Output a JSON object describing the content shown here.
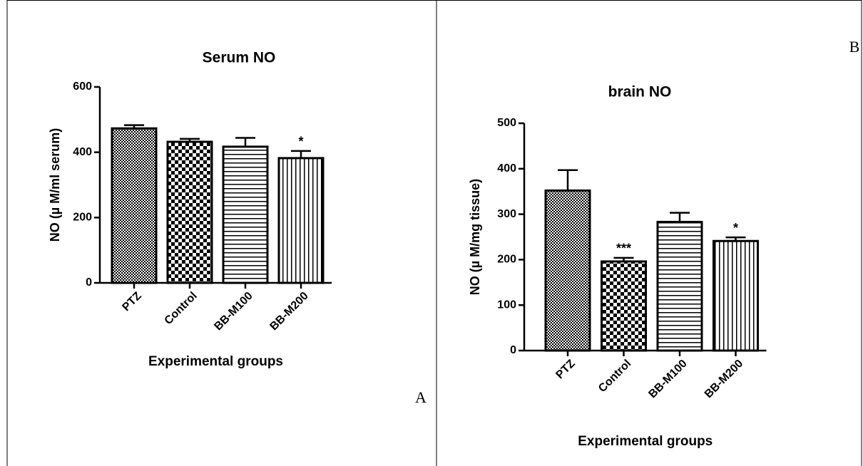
{
  "chart_data": [
    {
      "type": "bar",
      "title": "Serum NO",
      "y_label": "NO (µ M/ml serum)",
      "x_label": "Experimental groups",
      "categories": [
        "PTZ",
        "Control",
        "BB-M100",
        "BB-M200"
      ],
      "values": [
        473,
        432,
        417,
        382
      ],
      "errors": [
        10,
        9,
        27,
        22
      ],
      "annotations": [
        null,
        null,
        null,
        "*"
      ],
      "color": "#000000",
      "ylim": [
        0,
        600
      ],
      "yticks": [
        0,
        200,
        400,
        600
      ],
      "panel_label": "A"
    },
    {
      "type": "bar",
      "title": "brain NO",
      "y_label": "NO (µ M/mg tissue)",
      "x_label": "Experimental groups",
      "categories": [
        "PTZ",
        "Control",
        "BB-M100",
        "BB-M200"
      ],
      "values": [
        352,
        196,
        283,
        241
      ],
      "errors": [
        45,
        8,
        20,
        8
      ],
      "annotations": [
        null,
        "***",
        null,
        "*"
      ],
      "color": "#000000",
      "ylim": [
        0,
        500
      ],
      "yticks": [
        0,
        100,
        200,
        300,
        400,
        500
      ],
      "panel_label": "B"
    }
  ]
}
